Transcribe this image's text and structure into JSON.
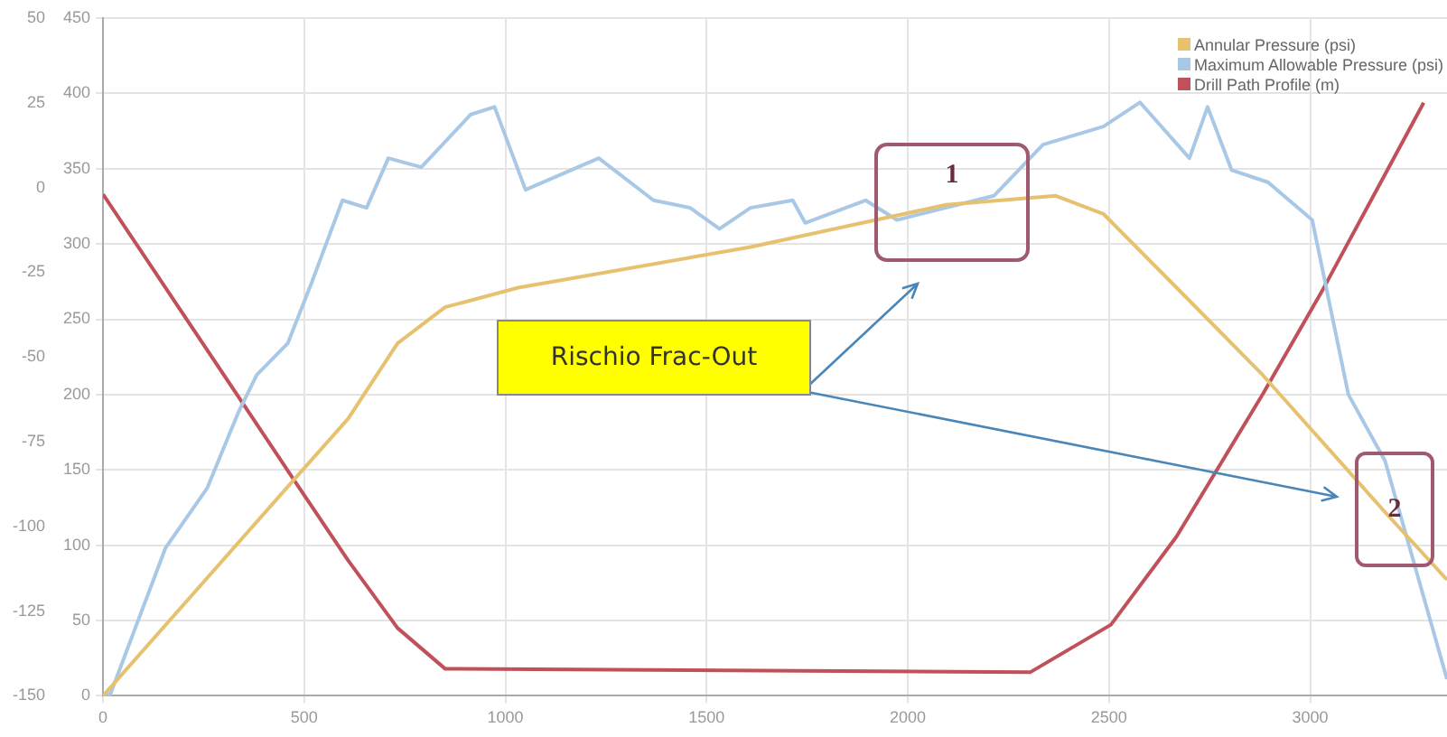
{
  "chart_data": {
    "type": "line",
    "legend": "top right",
    "grid": true,
    "marker": "none",
    "xlim": [
      0,
      3340
    ],
    "xticks": [
      0,
      500,
      1000,
      1500,
      2000,
      2500,
      3000
    ],
    "ylim": [
      0,
      450
    ],
    "yticks": [
      0,
      50,
      100,
      150,
      200,
      250,
      300,
      350,
      400,
      450
    ],
    "y2lim": [
      -150,
      50
    ],
    "y2ticks": [
      -150,
      -125,
      -100,
      -75,
      -50,
      -25,
      0,
      25,
      50
    ],
    "annotations": [
      "Rischio Frac-Out",
      "1",
      "2"
    ],
    "series": [
      {
        "name": "Annular Pressure (psi)",
        "color": "#e6c270",
        "x": [
          0,
          473,
          609,
          732,
          850,
          1032,
          1609,
          2095,
          2368,
          2486,
          2668,
          2882,
          3186,
          3340
        ],
        "values": [
          0,
          143,
          184,
          234,
          258,
          271,
          298,
          326,
          332,
          320,
          271,
          213,
          122,
          77
        ]
      },
      {
        "name": "Maximum Allowable Pressure (psi)",
        "color": "#a9c8e6",
        "x": [
          0,
          18,
          155,
          259,
          336,
          382,
          459,
          518,
          595,
          655,
          709,
          791,
          914,
          973,
          1050,
          1232,
          1368,
          1459,
          1532,
          1609,
          1714,
          1745,
          1895,
          1973,
          2214,
          2336,
          2486,
          2577,
          2700,
          2745,
          2805,
          2895,
          3005,
          3095,
          3186,
          3340
        ],
        "values": [
          0,
          1,
          98,
          138,
          188,
          213,
          234,
          274,
          329,
          324,
          357,
          351,
          386,
          391,
          336,
          357,
          329,
          324,
          310,
          324,
          329,
          314,
          329,
          316,
          332,
          366,
          378,
          394,
          357,
          391,
          349,
          341,
          316,
          200,
          156,
          11
        ]
      },
      {
        "name": "Drill Path Profile (m)",
        "color": "#c0505a",
        "axis": "y2",
        "x": [
          0,
          473,
          609,
          732,
          850,
          2305,
          2505,
          2668,
          2882,
          3032,
          3282
        ],
        "values": [
          -2,
          -86,
          -110,
          -130,
          -142,
          -143,
          -129,
          -103,
          -61,
          -30,
          25
        ]
      }
    ]
  }
}
